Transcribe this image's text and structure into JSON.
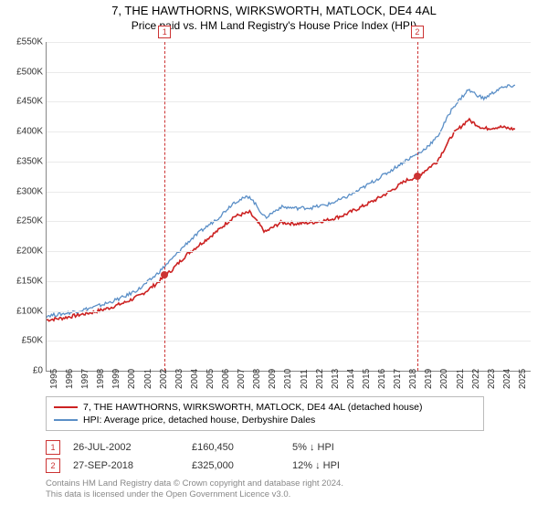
{
  "title": "7, THE HAWTHORNS, WIRKSWORTH, MATLOCK, DE4 4AL",
  "subtitle": "Price paid vs. HM Land Registry's House Price Index (HPI)",
  "chart": {
    "type": "line",
    "background_color": "#ffffff",
    "grid_color": "#eaeaea",
    "axis_color": "#888888",
    "label_fontsize": 10,
    "x": {
      "min": 1995,
      "max": 2026,
      "labels": [
        "1995",
        "1996",
        "1997",
        "1998",
        "1999",
        "2000",
        "2001",
        "2002",
        "2003",
        "2004",
        "2005",
        "2006",
        "2007",
        "2008",
        "2009",
        "2010",
        "2011",
        "2012",
        "2013",
        "2014",
        "2015",
        "2016",
        "2017",
        "2018",
        "2019",
        "2020",
        "2021",
        "2022",
        "2023",
        "2024",
        "2025"
      ]
    },
    "y": {
      "min": 0,
      "max": 550000,
      "tick_step": 50000,
      "labels": [
        "£0",
        "£50K",
        "£100K",
        "£150K",
        "£200K",
        "£250K",
        "£300K",
        "£350K",
        "£400K",
        "£450K",
        "£500K",
        "£550K"
      ]
    },
    "series": [
      {
        "name": "property",
        "label": "7, THE HAWTHORNS, WIRKSWORTH, MATLOCK, DE4 4AL (detached house)",
        "color": "#cc2222",
        "line_width": 1.6,
        "x": [
          1995,
          1996,
          1997,
          1998,
          1999,
          2000,
          2001,
          2002,
          2003,
          2004,
          2005,
          2006,
          2007,
          2008,
          2009,
          2010,
          2011,
          2012,
          2013,
          2014,
          2015,
          2016,
          2017,
          2018,
          2018.74,
          2019,
          2020,
          2021,
          2022,
          2023,
          2024,
          2025
        ],
        "y": [
          85000,
          88000,
          93000,
          98000,
          105000,
          114000,
          126000,
          145000,
          168000,
          195000,
          215000,
          235000,
          258000,
          265000,
          232000,
          248000,
          246000,
          248000,
          252000,
          260000,
          272000,
          285000,
          300000,
          318000,
          325000,
          330000,
          350000,
          395000,
          420000,
          405000,
          408000,
          404000
        ]
      },
      {
        "name": "hpi",
        "label": "HPI: Average price, detached house, Derbyshire Dales",
        "color": "#5b8fc7",
        "line_width": 1.3,
        "x": [
          1995,
          1996,
          1997,
          1998,
          1999,
          2000,
          2001,
          2002,
          2003,
          2004,
          2005,
          2006,
          2007,
          2008,
          2009,
          2010,
          2011,
          2012,
          2013,
          2014,
          2015,
          2016,
          2017,
          2018,
          2019,
          2020,
          2021,
          2022,
          2023,
          2024,
          2025
        ],
        "y": [
          92000,
          95000,
          100000,
          106000,
          114000,
          124000,
          138000,
          160000,
          186000,
          214000,
          236000,
          256000,
          282000,
          292000,
          256000,
          274000,
          272000,
          273000,
          278000,
          288000,
          302000,
          318000,
          334000,
          352000,
          366000,
          390000,
          440000,
          470000,
          455000,
          472000,
          478000
        ]
      }
    ],
    "markers": [
      {
        "n": "1",
        "x": 2002.56,
        "y": 160450
      },
      {
        "n": "2",
        "x": 2018.74,
        "y": 325000
      }
    ],
    "noise_amp": 6000
  },
  "legend": {
    "border_color": "#bbbbbb"
  },
  "sales": [
    {
      "n": "1",
      "date": "26-JUL-2002",
      "price": "£160,450",
      "delta": "5% ↓ HPI"
    },
    {
      "n": "2",
      "date": "27-SEP-2018",
      "price": "£325,000",
      "delta": "12% ↓ HPI"
    }
  ],
  "footer": {
    "line1": "Contains HM Land Registry data © Crown copyright and database right 2024.",
    "line2": "This data is licensed under the Open Government Licence v3.0."
  }
}
